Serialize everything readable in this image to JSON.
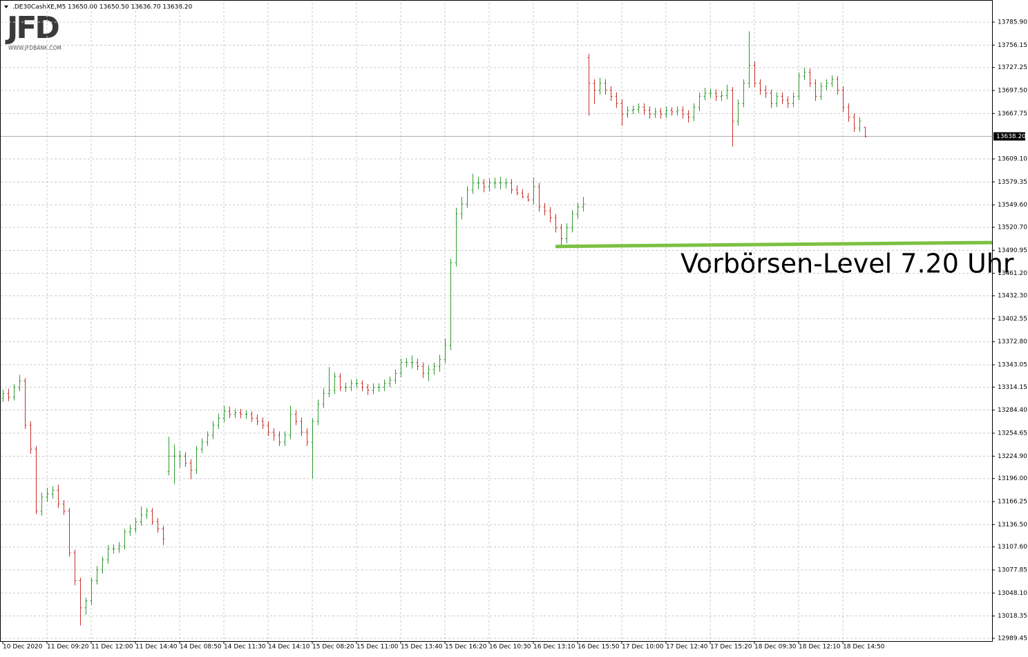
{
  "chart_data": {
    "type": "ohlc",
    "symbol": ".DE30CashXE,M5",
    "quote": "13650.00 13650.50 13636.70 13638.20",
    "logo": "JFD",
    "logo_url": "WWW.JFDBANK.COM",
    "annotation": "Vorbörsen-Level 7.20 Uhr",
    "level_line": {
      "start_index": 100,
      "values": [
        13496,
        13501
      ],
      "color": "#7cc142"
    },
    "current_price": {
      "value": 13638.2,
      "label": "13638.20"
    },
    "up_color": "#2f9a2f",
    "down_color": "#c8302a",
    "grid": true,
    "ylim": [
      12985.9,
      13810.9
    ],
    "yticks": [
      {
        "value": 13785.9,
        "label": "13785.90"
      },
      13756.15,
      13727.25,
      {
        "value": 13697.5,
        "label": "13697.50"
      },
      13667.75,
      {
        "value": 13609.1,
        "label": "13609.10"
      },
      13579.35,
      {
        "value": 13549.6,
        "label": "13549.60"
      },
      {
        "value": 13520.7,
        "label": "13520.70"
      },
      13490.95,
      {
        "value": 13461.2,
        "label": "13461.20"
      },
      {
        "value": 13432.3,
        "label": "13432.30"
      },
      13402.55,
      {
        "value": 13372.8,
        "label": "13372.80"
      },
      13343.05,
      13314.15,
      {
        "value": 13284.4,
        "label": "13284.40"
      },
      13254.65,
      {
        "value": 13224.9,
        "label": "13224.90"
      },
      {
        "value": 13196.0,
        "label": "13196.00"
      },
      13166.25,
      {
        "value": 13136.5,
        "label": "13136.50"
      },
      {
        "value": 13107.6,
        "label": "13107.60"
      },
      13077.85,
      {
        "value": 13048.1,
        "label": "13048.10"
      },
      13018.35,
      12989.45
    ],
    "xticks": [
      {
        "value": 0,
        "label": "10 Dec 2020"
      },
      {
        "value": 8,
        "label": "11 Dec 09:20"
      },
      {
        "value": 16,
        "label": "11 Dec 12:00"
      },
      {
        "value": 24,
        "label": "11 Dec 14:40"
      },
      {
        "value": 32,
        "label": "14 Dec 08:50"
      },
      {
        "value": 40,
        "label": "14 Dec 11:30"
      },
      {
        "value": 48,
        "label": "14 Dec 14:10"
      },
      {
        "value": 56,
        "label": "15 Dec 08:20"
      },
      {
        "value": 64,
        "label": "15 Dec 11:00"
      },
      {
        "value": 72,
        "label": "15 Dec 13:40"
      },
      {
        "value": 80,
        "label": "15 Dec 16:20"
      },
      {
        "value": 88,
        "label": "16 Dec 10:30"
      },
      {
        "value": 96,
        "label": "16 Dec 13:10"
      },
      {
        "value": 104,
        "label": "16 Dec 15:50"
      },
      {
        "value": 112,
        "label": "17 Dec 10:00"
      },
      {
        "value": 120,
        "label": "17 Dec 12:40"
      },
      {
        "value": 128,
        "label": "17 Dec 15:20"
      },
      {
        "value": 136,
        "label": "18 Dec 09:30"
      },
      {
        "value": 144,
        "label": "18 Dec 12:10"
      },
      {
        "value": 152,
        "label": "18 Dec 14:50"
      }
    ],
    "open": [
      13300,
      13306,
      13301,
      13314,
      13322,
      13265,
      13234,
      13154,
      13172,
      13176,
      13181,
      13163,
      13154,
      13100,
      13064,
      13029,
      13038,
      13064,
      13078,
      13091,
      13105,
      13105,
      13109,
      13127,
      13131,
      13140,
      13149,
      13154,
      13140,
      13131,
      13205,
      13225,
      13225,
      13225,
      13216,
      13207,
      13234,
      13243,
      13252,
      13265,
      13274,
      13283,
      13279,
      13281,
      13279,
      13279,
      13274,
      13270,
      13265,
      13256,
      13252,
      13243,
      13252,
      13279,
      13270,
      13256,
      13243,
      13270,
      13292,
      13306,
      13310,
      13328,
      13314,
      13314,
      13319,
      13319,
      13314,
      13310,
      13314,
      13314,
      13319,
      13323,
      13332,
      13346,
      13346,
      13346,
      13341,
      13332,
      13337,
      13341,
      13350,
      13368,
      13475,
      13538,
      13551,
      13569,
      13578,
      13578,
      13573,
      13578,
      13578,
      13578,
      13578,
      13569,
      13565,
      13560,
      13556,
      13573,
      13547,
      13542,
      13533,
      13520,
      13506,
      13520,
      13538,
      13547,
      13740,
      13707,
      13698,
      13707,
      13698,
      13690,
      13681,
      13667,
      13672,
      13673,
      13676,
      13672,
      13667,
      13670,
      13667,
      13672,
      13670,
      13672,
      13667,
      13663,
      13676,
      13690,
      13694,
      13694,
      13690,
      13691,
      13698,
      13658,
      13681,
      13707,
      13730,
      13707,
      13698,
      13694,
      13681,
      13690,
      13685,
      13681,
      13690,
      13716,
      13721,
      13707,
      13690,
      13703,
      13707,
      13712,
      13698,
      13676,
      13663,
      13649,
      13650
    ],
    "high": [
      13311,
      13312,
      13318,
      13330,
      13326,
      13270,
      13238,
      13178,
      13184,
      13186,
      13188,
      13168,
      13158,
      13104,
      13068,
      13042,
      13068,
      13083,
      13095,
      13110,
      13111,
      13114,
      13131,
      13136,
      13145,
      13160,
      13158,
      13158,
      13145,
      13135,
      13250,
      13240,
      13232,
      13230,
      13221,
      13238,
      13248,
      13257,
      13270,
      13280,
      13290,
      13289,
      13286,
      13286,
      13284,
      13283,
      13279,
      13275,
      13270,
      13261,
      13257,
      13257,
      13290,
      13284,
      13275,
      13261,
      13274,
      13298,
      13313,
      13340,
      13333,
      13332,
      13320,
      13324,
      13325,
      13323,
      13318,
      13319,
      13319,
      13324,
      13328,
      13337,
      13351,
      13352,
      13355,
      13351,
      13346,
      13342,
      13346,
      13356,
      13377,
      13480,
      13546,
      13560,
      13574,
      13590,
      13586,
      13583,
      13584,
      13585,
      13586,
      13584,
      13583,
      13575,
      13570,
      13565,
      13585,
      13578,
      13552,
      13547,
      13538,
      13525,
      13526,
      13543,
      13552,
      13560,
      13745,
      13712,
      13714,
      13712,
      13703,
      13695,
      13686,
      13677,
      13678,
      13681,
      13681,
      13677,
      13675,
      13675,
      13677,
      13676,
      13677,
      13677,
      13672,
      13681,
      13695,
      13701,
      13700,
      13699,
      13697,
      13705,
      13702,
      13686,
      13712,
      13774,
      13735,
      13712,
      13704,
      13699,
      13695,
      13695,
      13690,
      13695,
      13721,
      13727,
      13726,
      13712,
      13708,
      13712,
      13717,
      13716,
      13703,
      13681,
      13668,
      13663,
      13650.5
    ],
    "low": [
      13295,
      13296,
      13297,
      13309,
      13260,
      13228,
      13150,
      13148,
      13166,
      13170,
      13158,
      13149,
      13095,
      13058,
      13006,
      13020,
      13033,
      13059,
      13073,
      13086,
      13099,
      13100,
      13104,
      13122,
      13126,
      13135,
      13144,
      13136,
      13126,
      13110,
      13200,
      13189,
      13210,
      13211,
      13195,
      13202,
      13229,
      13238,
      13247,
      13260,
      13269,
      13274,
      13274,
      13274,
      13273,
      13269,
      13265,
      13260,
      13251,
      13245,
      13238,
      13238,
      13247,
      13265,
      13251,
      13238,
      13196,
      13265,
      13287,
      13301,
      13305,
      13309,
      13308,
      13309,
      13313,
      13309,
      13304,
      13305,
      13308,
      13309,
      13314,
      13318,
      13327,
      13340,
      13338,
      13336,
      13326,
      13322,
      13330,
      13334,
      13345,
      13362,
      13470,
      13531,
      13546,
      13564,
      13570,
      13566,
      13567,
      13571,
      13570,
      13571,
      13564,
      13562,
      13558,
      13554,
      13550,
      13541,
      13536,
      13527,
      13514,
      13497,
      13500,
      13514,
      13532,
      13541,
      13665,
      13680,
      13692,
      13692,
      13684,
      13675,
      13652,
      13662,
      13667,
      13668,
      13666,
      13661,
      13662,
      13661,
      13662,
      13665,
      13665,
      13661,
      13656,
      13658,
      13671,
      13685,
      13688,
      13684,
      13684,
      13686,
      13625,
      13652,
      13676,
      13701,
      13702,
      13692,
      13688,
      13675,
      13676,
      13680,
      13675,
      13676,
      13685,
      13711,
      13702,
      13684,
      13685,
      13698,
      13702,
      13692,
      13670,
      13657,
      13644,
      13644,
      13636.7
    ],
    "close": [
      13306,
      13301,
      13314,
      13322,
      13265,
      13234,
      13154,
      13172,
      13176,
      13181,
      13163,
      13154,
      13100,
      13064,
      13029,
      13038,
      13064,
      13078,
      13091,
      13105,
      13105,
      13109,
      13127,
      13131,
      13140,
      13149,
      13154,
      13140,
      13131,
      13118,
      13225,
      13225,
      13225,
      13216,
      13207,
      13234,
      13243,
      13252,
      13265,
      13274,
      13283,
      13279,
      13281,
      13279,
      13279,
      13274,
      13270,
      13265,
      13256,
      13252,
      13243,
      13252,
      13279,
      13270,
      13256,
      13243,
      13270,
      13292,
      13306,
      13310,
      13328,
      13314,
      13314,
      13319,
      13319,
      13314,
      13310,
      13314,
      13314,
      13319,
      13323,
      13332,
      13346,
      13346,
      13346,
      13341,
      13332,
      13337,
      13341,
      13350,
      13368,
      13475,
      13538,
      13551,
      13569,
      13578,
      13578,
      13573,
      13578,
      13578,
      13578,
      13578,
      13569,
      13565,
      13560,
      13556,
      13573,
      13547,
      13542,
      13533,
      13520,
      13506,
      13520,
      13538,
      13547,
      13551,
      13707,
      13698,
      13707,
      13698,
      13690,
      13681,
      13667,
      13672,
      13673,
      13676,
      13672,
      13667,
      13670,
      13667,
      13672,
      13670,
      13672,
      13667,
      13663,
      13676,
      13690,
      13694,
      13694,
      13690,
      13691,
      13698,
      13658,
      13681,
      13707,
      13730,
      13707,
      13698,
      13694,
      13681,
      13690,
      13685,
      13681,
      13690,
      13716,
      13721,
      13707,
      13690,
      13703,
      13707,
      13712,
      13698,
      13676,
      13663,
      13649,
      13658,
      13638.2
    ]
  }
}
